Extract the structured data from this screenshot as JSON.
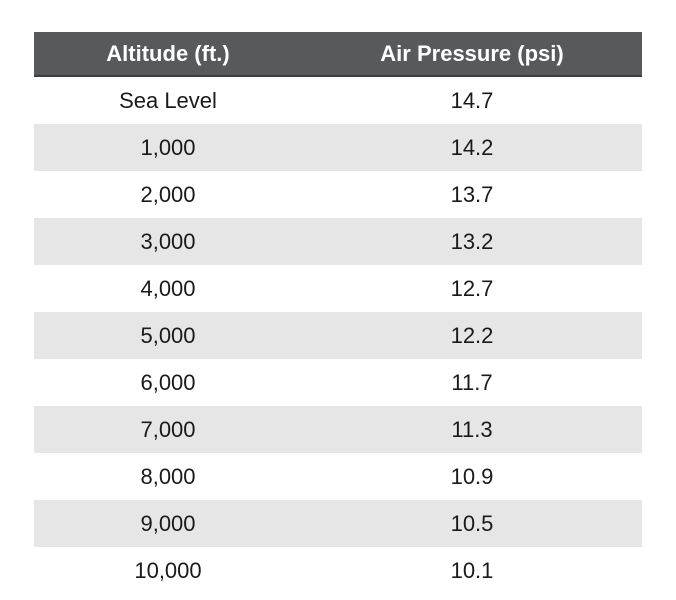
{
  "table": {
    "headers": [
      "Altitude (ft.)",
      "Air Pressure (psi)"
    ],
    "rows": [
      [
        "Sea Level",
        "14.7"
      ],
      [
        "1,000",
        "14.2"
      ],
      [
        "2,000",
        "13.7"
      ],
      [
        "3,000",
        "13.2"
      ],
      [
        "4,000",
        "12.7"
      ],
      [
        "5,000",
        "12.2"
      ],
      [
        "6,000",
        "11.7"
      ],
      [
        "7,000",
        "11.3"
      ],
      [
        "8,000",
        "10.9"
      ],
      [
        "9,000",
        "10.5"
      ],
      [
        "10,000",
        "10.1"
      ]
    ]
  },
  "colors": {
    "header_bg": "#58595b",
    "header_text": "#ffffff",
    "stripe_bg": "#e6e6e7",
    "body_text": "#1a1a1a"
  }
}
